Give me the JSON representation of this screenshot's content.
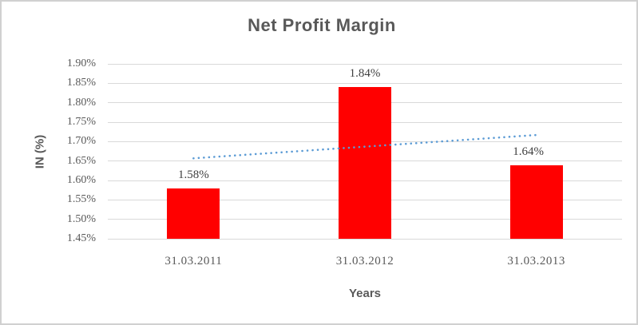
{
  "window": {
    "frame_color": "#d0d0d0",
    "background": "#ffffff"
  },
  "chart_data": {
    "type": "bar",
    "title": "Net Profit Margin",
    "xlabel": "Years",
    "ylabel": "IN (%)",
    "categories": [
      "31.03.2011",
      "31.03.2012",
      "31.03.2013"
    ],
    "values": [
      1.58,
      1.84,
      1.64
    ],
    "value_labels": [
      "1.58%",
      "1.84%",
      "1.64%"
    ],
    "bar_color": "#ff0000",
    "ylim": [
      1.45,
      1.9
    ],
    "ytick_step": 0.05,
    "ytick_labels": [
      "1.90%",
      "1.85%",
      "1.80%",
      "1.75%",
      "1.70%",
      "1.65%",
      "1.60%",
      "1.55%",
      "1.50%",
      "1.45%"
    ],
    "grid": true,
    "gridline_color": "#d9d9d9",
    "axis_text_color": "#595959",
    "data_label_color": "#3f3f3f",
    "title_color": "#595959",
    "legend": "none",
    "trendline": {
      "type": "linear",
      "style": "dotted",
      "color": "#5b9bd5",
      "start_value": 1.657,
      "end_value": 1.717
    }
  }
}
